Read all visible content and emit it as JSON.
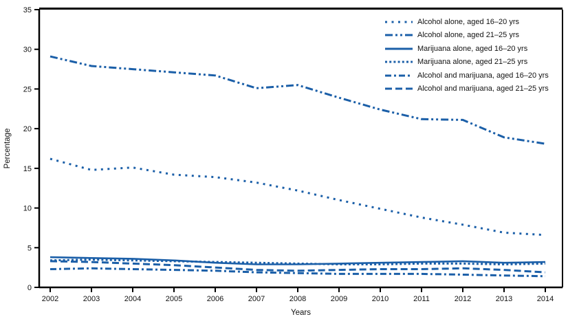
{
  "figure": {
    "background_color": "#ffffff",
    "line_color": "#1b5fa8",
    "axis_color": "#000000"
  },
  "chart_data": {
    "type": "line",
    "title": "",
    "xlabel": "Years",
    "ylabel": "Percentage",
    "ylim": [
      0,
      35
    ],
    "yticks": [
      0,
      5,
      10,
      15,
      20,
      25,
      30,
      35
    ],
    "grid": false,
    "legend_position": "top-right",
    "x": [
      2002,
      2003,
      2004,
      2005,
      2006,
      2007,
      2008,
      2009,
      2010,
      2011,
      2012,
      2013,
      2014
    ],
    "series": [
      {
        "name": "Alcohol alone, aged 16–20 yrs",
        "dash_style": "sparse-dot",
        "values": [
          16.2,
          14.8,
          15.1,
          14.2,
          13.9,
          13.2,
          12.2,
          11.0,
          9.9,
          8.8,
          7.9,
          6.9,
          6.6
        ]
      },
      {
        "name": "Alcohol alone, aged 21–25 yrs",
        "dash_style": "dash-dot-dot",
        "values": [
          29.1,
          27.9,
          27.5,
          27.1,
          26.7,
          25.1,
          25.5,
          23.9,
          22.4,
          21.2,
          21.1,
          18.9,
          18.1
        ]
      },
      {
        "name": "Marijuana alone, aged 16–20 yrs",
        "dash_style": "solid",
        "values": [
          3.8,
          3.7,
          3.6,
          3.4,
          3.1,
          2.9,
          2.9,
          3.0,
          3.1,
          3.2,
          3.3,
          3.1,
          3.2
        ]
      },
      {
        "name": "Marijuana alone, aged 21–25 yrs",
        "dash_style": "dot",
        "values": [
          3.4,
          3.5,
          3.4,
          3.3,
          3.2,
          3.1,
          3.0,
          2.9,
          2.9,
          3.0,
          3.0,
          2.9,
          3.0
        ]
      },
      {
        "name": "Alcohol and marijuana, aged 16–20 yrs",
        "dash_style": "dash-dot",
        "values": [
          2.3,
          2.4,
          2.3,
          2.2,
          2.1,
          1.9,
          1.8,
          1.7,
          1.7,
          1.7,
          1.6,
          1.5,
          1.4
        ]
      },
      {
        "name": "Alcohol and marijuana, aged 21–25 yrs",
        "dash_style": "dash",
        "values": [
          3.3,
          3.2,
          3.0,
          2.8,
          2.5,
          2.2,
          2.1,
          2.2,
          2.3,
          2.3,
          2.4,
          2.2,
          1.9
        ]
      }
    ]
  }
}
